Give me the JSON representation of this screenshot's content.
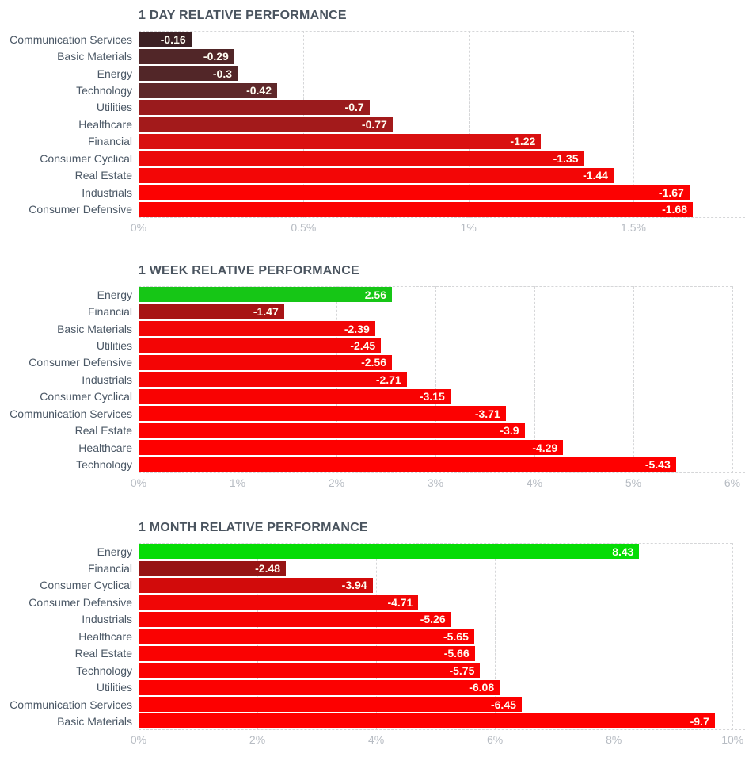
{
  "chart_data": [
    {
      "type": "bar",
      "title": "1 DAY RELATIVE PERFORMANCE",
      "xlabel": "",
      "ylabel": "",
      "orientation": "horizontal",
      "grid": "dashed-vertical",
      "xlim": [
        0,
        1.824
      ],
      "categories": [
        "Communication Services",
        "Basic Materials",
        "Energy",
        "Technology",
        "Utilities",
        "Healthcare",
        "Financial",
        "Consumer Cyclical",
        "Real Estate",
        "Industrials",
        "Consumer Defensive"
      ],
      "values": [
        -0.16,
        -0.29,
        -0.3,
        -0.42,
        -0.7,
        -0.77,
        -1.22,
        -1.35,
        -1.44,
        -1.67,
        -1.68
      ],
      "value_labels": [
        "-0.16",
        "-0.29",
        "-0.3",
        "-0.42",
        "-0.7",
        "-0.77",
        "-1.22",
        "-1.35",
        "-1.44",
        "-1.67",
        "-1.68"
      ],
      "bar_colors": [
        "#3c2124",
        "#512628",
        "#522628",
        "#5f282a",
        "#9a1b1d",
        "#a31a1b",
        "#d91010",
        "#eb0909",
        "#f30606",
        "#fc0202",
        "#fc0202"
      ],
      "ticks": [
        {
          "label": "0%",
          "value": 0
        },
        {
          "label": "0.5%",
          "value": 0.5
        },
        {
          "label": "1%",
          "value": 1
        },
        {
          "label": "1.5%",
          "value": 1.5
        }
      ]
    },
    {
      "type": "bar",
      "title": "1 WEEK RELATIVE PERFORMANCE",
      "xlabel": "",
      "ylabel": "",
      "orientation": "horizontal",
      "grid": "dashed-vertical",
      "xlim": [
        0,
        6.08
      ],
      "categories": [
        "Energy",
        "Financial",
        "Basic Materials",
        "Utilities",
        "Consumer Defensive",
        "Industrials",
        "Consumer Cyclical",
        "Communication Services",
        "Real Estate",
        "Healthcare",
        "Technology"
      ],
      "values": [
        2.56,
        -1.47,
        -2.39,
        -2.45,
        -2.56,
        -2.71,
        -3.15,
        -3.71,
        -3.9,
        -4.29,
        -5.43
      ],
      "value_labels": [
        "2.56",
        "-1.47",
        "-2.39",
        "-2.45",
        "-2.56",
        "-2.71",
        "-3.15",
        "-3.71",
        "-3.9",
        "-4.29",
        "-5.43"
      ],
      "bar_colors": [
        "#16c616",
        "#a81415",
        "#f20606",
        "#f30505",
        "#f40505",
        "#f60404",
        "#f90202",
        "#fc0101",
        "#fd0101",
        "#fe0000",
        "#ff0000"
      ],
      "ticks": [
        {
          "label": "0%",
          "value": 0
        },
        {
          "label": "1%",
          "value": 1
        },
        {
          "label": "2%",
          "value": 2
        },
        {
          "label": "3%",
          "value": 3
        },
        {
          "label": "4%",
          "value": 4
        },
        {
          "label": "5%",
          "value": 5
        },
        {
          "label": "6%",
          "value": 6
        }
      ]
    },
    {
      "type": "bar",
      "title": "1 MONTH RELATIVE PERFORMANCE",
      "xlabel": "",
      "ylabel": "",
      "orientation": "horizontal",
      "grid": "dashed-vertical",
      "xlim": [
        0,
        10.13
      ],
      "categories": [
        "Energy",
        "Financial",
        "Consumer Cyclical",
        "Consumer Defensive",
        "Industrials",
        "Healthcare",
        "Real Estate",
        "Technology",
        "Utilities",
        "Communication Services",
        "Basic Materials"
      ],
      "values": [
        8.43,
        -2.48,
        -3.94,
        -4.71,
        -5.26,
        -5.65,
        -5.66,
        -5.75,
        -6.08,
        -6.45,
        -9.7
      ],
      "value_labels": [
        "8.43",
        "-2.48",
        "-3.94",
        "-4.71",
        "-5.26",
        "-5.65",
        "-5.66",
        "-5.75",
        "-6.08",
        "-6.45",
        "-9.7"
      ],
      "bar_colors": [
        "#05dc05",
        "#971414",
        "#d20b0b",
        "#f10606",
        "#f80303",
        "#fa0202",
        "#fa0202",
        "#fb0202",
        "#fc0101",
        "#fd0000",
        "#ff0000"
      ],
      "ticks": [
        {
          "label": "0%",
          "value": 0
        },
        {
          "label": "2%",
          "value": 2
        },
        {
          "label": "4%",
          "value": 4
        },
        {
          "label": "6%",
          "value": 6
        },
        {
          "label": "8%",
          "value": 8
        },
        {
          "label": "10%",
          "value": 10
        }
      ]
    }
  ],
  "palette": {
    "positive_green": "#05dc05",
    "negative_red_max": "#ff0000",
    "negative_red_min": "#3c2124",
    "grid_line": "#d5d6d8",
    "title_text": "#4a545f",
    "category_text": "#4b5866",
    "tick_text": "#b7bcc3",
    "value_text": "#fffdf2"
  }
}
